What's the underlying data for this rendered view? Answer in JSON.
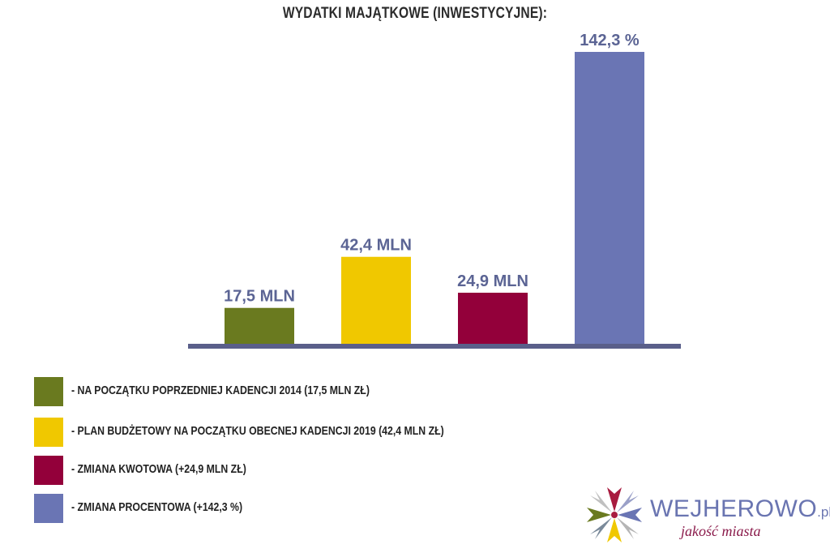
{
  "chart_data": {
    "type": "bar",
    "title": "WYDATKI MAJĄTKOWE (INWESTYCYJNE):",
    "categories": [
      "- NA POCZĄTKU POPRZEDNIEJ KADENCJI 2014  (17,5 MLN ZŁ)",
      "- PLAN BUDŻETOWY NA POCZĄTKU OBECNEJ KADENCJI 2019  (42,4 MLN ZŁ)",
      "- ZMIANA KWOTOWA  (+24,9 MLN ZŁ)",
      "- ZMIANA PROCENTOWA  (+142,3 %)"
    ],
    "values": [
      17.5,
      42.4,
      24.9,
      142.3
    ],
    "data_labels": [
      "17,5 MLN",
      "42,4 MLN",
      "24,9 MLN",
      "142,3 %"
    ],
    "colors": [
      "#6a7a1f",
      "#f0c800",
      "#93003a",
      "#6a75b4"
    ],
    "axis_color": "#5a5f8a",
    "label_color": "#5b6494",
    "legend_position": "bottom-left",
    "grid": false
  },
  "logo": {
    "name": "WEJHEROWO",
    "suffix": ".pl",
    "tagline": "jakość miasta"
  }
}
